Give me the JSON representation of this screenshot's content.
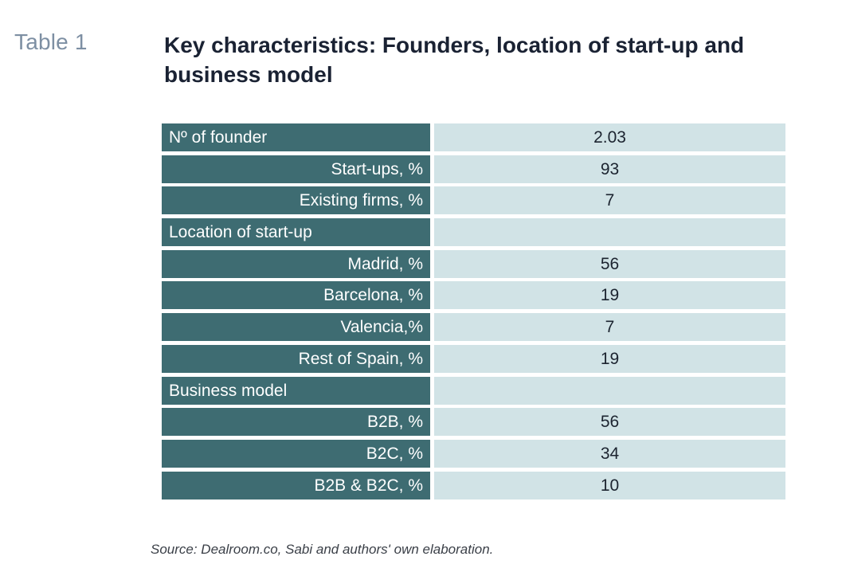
{
  "table_label": "Table 1",
  "title": "Key characteristics: Founders, location of start-up and business model",
  "rows": [
    {
      "label": "Nº of founder",
      "value": "2.03"
    },
    {
      "label": "Start-ups, %",
      "value": "93"
    },
    {
      "label": "Existing firms, %",
      "value": "7"
    },
    {
      "label": "Location of start-up",
      "value": ""
    },
    {
      "label": "Madrid, %",
      "value": "56"
    },
    {
      "label": "Barcelona, %",
      "value": "19"
    },
    {
      "label": "Valencia,%",
      "value": "7"
    },
    {
      "label": "Rest of Spain, %",
      "value": "19"
    },
    {
      "label": "Business model",
      "value": ""
    },
    {
      "label": "B2B, %",
      "value": "56"
    },
    {
      "label": "B2C, %",
      "value": "34"
    },
    {
      "label": "B2B & B2C, %",
      "value": "10"
    }
  ],
  "source": "Source: Dealroom.co, Sabi and authors' own elaboration.",
  "colors": {
    "label_bg": "#3e6c72",
    "value_bg": "#d1e3e6",
    "title": "#1a2233",
    "table_label": "#7d8fa3"
  }
}
